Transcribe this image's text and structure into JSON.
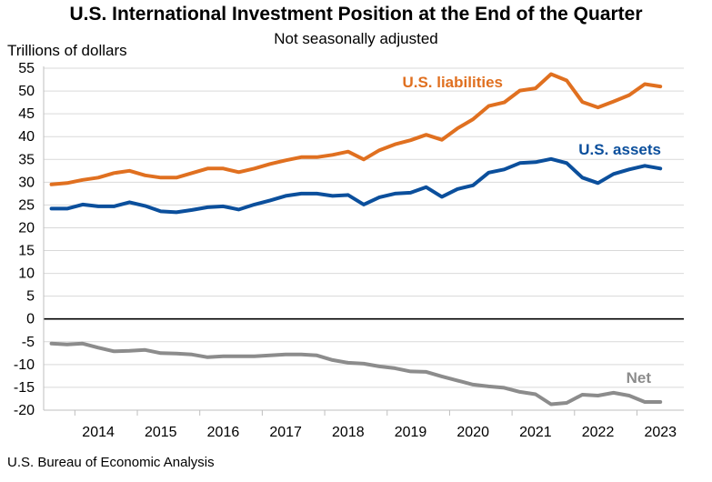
{
  "chart_data": {
    "type": "line",
    "title": "U.S. International Investment Position at the End of the Quarter",
    "subtitle": "Not seasonally adjusted",
    "ylabel": "Trillions of dollars",
    "xlabel": "",
    "ylim": [
      -20,
      55
    ],
    "yticks": [
      55,
      50,
      45,
      40,
      35,
      30,
      25,
      20,
      15,
      10,
      5,
      0,
      -5,
      -10,
      -15,
      -20
    ],
    "x_start": 2013.5,
    "x_end": 2023.75,
    "year_labels": [
      "2014",
      "2015",
      "2016",
      "2017",
      "2018",
      "2019",
      "2020",
      "2021",
      "2022",
      "2023"
    ],
    "source": "U.S. Bureau of Economic Analysis",
    "series": [
      {
        "name": "U.S. liabilities",
        "color": "#E07020",
        "values": [
          29.5,
          29.8,
          30.5,
          31.0,
          32.0,
          32.5,
          31.5,
          31.0,
          31.0,
          32.0,
          33.0,
          33.0,
          32.2,
          33.0,
          34.0,
          34.8,
          35.5,
          35.5,
          36.0,
          36.7,
          35.0,
          37.0,
          38.3,
          39.2,
          40.4,
          39.3,
          41.8,
          43.8,
          46.7,
          47.5,
          50.1,
          50.6,
          53.7,
          52.3,
          47.6,
          46.4,
          47.7,
          49.1,
          51.5,
          51.0
        ]
      },
      {
        "name": "U.S. assets",
        "color": "#0B4F9C",
        "values": [
          24.2,
          24.2,
          25.1,
          24.7,
          24.7,
          25.6,
          24.8,
          23.6,
          23.4,
          23.9,
          24.5,
          24.7,
          24.0,
          25.1,
          26.0,
          27.0,
          27.5,
          27.5,
          27.0,
          27.2,
          25.1,
          26.7,
          27.5,
          27.7,
          28.9,
          26.8,
          28.5,
          29.3,
          32.1,
          32.8,
          34.2,
          34.4,
          35.1,
          34.2,
          31.0,
          29.8,
          31.8,
          32.8,
          33.6,
          33.0
        ]
      },
      {
        "name": "Net",
        "color": "#8C8C8C",
        "values": [
          -5.4,
          -5.6,
          -5.4,
          -6.3,
          -7.1,
          -7.0,
          -6.8,
          -7.5,
          -7.6,
          -7.8,
          -8.4,
          -8.2,
          -8.2,
          -8.2,
          -8.0,
          -7.8,
          -7.8,
          -8.0,
          -9.0,
          -9.6,
          -9.8,
          -10.4,
          -10.8,
          -11.5,
          -11.6,
          -12.6,
          -13.5,
          -14.4,
          -14.8,
          -15.1,
          -16.0,
          -16.5,
          -18.7,
          -18.4,
          -16.6,
          -16.8,
          -16.2,
          -16.8,
          -18.2,
          -18.2
        ]
      }
    ]
  }
}
